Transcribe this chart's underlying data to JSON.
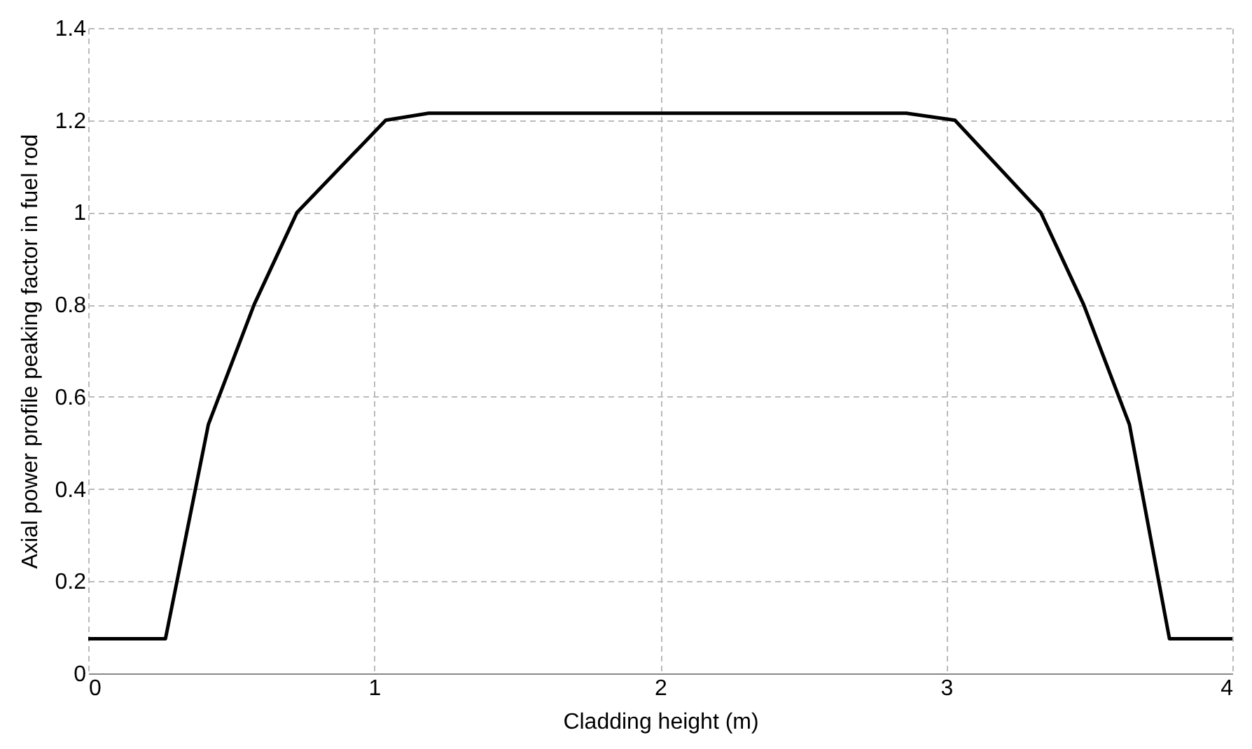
{
  "chart_data": {
    "type": "line",
    "xlabel": "Cladding height (m)",
    "ylabel": "Axial power profile peaking factor in fuel rod",
    "x": [
      0,
      0.27,
      0.42,
      0.58,
      0.73,
      1.04,
      1.19,
      2.86,
      3.03,
      3.33,
      3.48,
      3.64,
      3.78,
      4
    ],
    "series": [
      {
        "color": "#000000",
        "values": [
          0.075,
          0.075,
          0.54,
          0.8,
          1.0,
          1.2,
          1.215,
          1.215,
          1.2,
          1.0,
          0.8,
          0.54,
          0.075,
          0.075
        ]
      }
    ],
    "xlim": [
      0,
      4
    ],
    "xticks": [
      0,
      1,
      2,
      3,
      4
    ],
    "ylim": [
      0,
      1.4
    ],
    "yticks": [
      0,
      0.2,
      0.4,
      0.6,
      0.8,
      1,
      1.2,
      1.4
    ],
    "grid": true,
    "line_style": "solid",
    "marker": "none"
  }
}
